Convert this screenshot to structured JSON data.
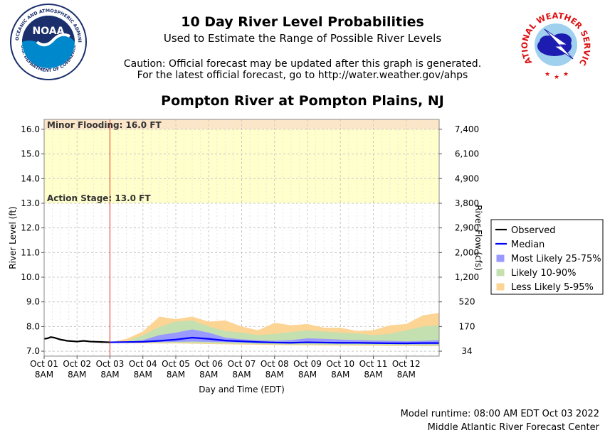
{
  "header": {
    "title": "10 Day River Level Probabilities",
    "subtitle": "Used to Estimate the Range of Possible River Levels",
    "caution_line1": "Caution: Official forecast may be updated after this graph is generated.",
    "caution_line2": "For the latest official forecast, go to http://water.weather.gov/ahps",
    "location": "Pompton River at Pompton Plains, NJ"
  },
  "logos": {
    "noaa": {
      "center_text": "NOAA",
      "ring_text": "NATIONAL OCEANIC AND ATMOSPHERIC ADMINISTRATION",
      "bottom_text": "U.S. DEPARTMENT OF COMMERCE"
    },
    "nws": {
      "ring_text": "NATIONAL WEATHER SERVICE"
    }
  },
  "footer": {
    "runtime": "Model runtime: 08:00 AM EDT Oct 03 2022",
    "center": "Middle Atlantic River Forecast Center"
  },
  "chart_data": {
    "type": "area",
    "xlabel": "Day and Time (EDT)",
    "ylabel": "River Level (ft)",
    "y2label": "River Flow (cfs)",
    "ylim": [
      6.8,
      16.4
    ],
    "yticks": [
      7.0,
      8.0,
      9.0,
      10.0,
      11.0,
      12.0,
      13.0,
      14.0,
      15.0,
      16.0
    ],
    "y2ticks": [
      {
        "stage": 7.0,
        "label": "34"
      },
      {
        "stage": 8.0,
        "label": "170"
      },
      {
        "stage": 9.0,
        "label": "520"
      },
      {
        "stage": 10.0,
        "label": "1,200"
      },
      {
        "stage": 11.0,
        "label": "2,000"
      },
      {
        "stage": 12.0,
        "label": "2,900"
      },
      {
        "stage": 13.0,
        "label": "3,800"
      },
      {
        "stage": 14.0,
        "label": "4,900"
      },
      {
        "stage": 15.0,
        "label": "6,100"
      },
      {
        "stage": 16.0,
        "label": "7,400"
      }
    ],
    "xlim": [
      0,
      12
    ],
    "xticks": [
      {
        "day": 0,
        "label1": "Oct 01",
        "label2": "8AM"
      },
      {
        "day": 1,
        "label1": "Oct 02",
        "label2": "8AM"
      },
      {
        "day": 2,
        "label1": "Oct 03",
        "label2": "8AM"
      },
      {
        "day": 3,
        "label1": "Oct 04",
        "label2": "8AM"
      },
      {
        "day": 4,
        "label1": "Oct 05",
        "label2": "8AM"
      },
      {
        "day": 5,
        "label1": "Oct 06",
        "label2": "8AM"
      },
      {
        "day": 6,
        "label1": "Oct 07",
        "label2": "8AM"
      },
      {
        "day": 7,
        "label1": "Oct 08",
        "label2": "8AM"
      },
      {
        "day": 8,
        "label1": "Oct 09",
        "label2": "8AM"
      },
      {
        "day": 9,
        "label1": "Oct 10",
        "label2": "8AM"
      },
      {
        "day": 10,
        "label1": "Oct 11",
        "label2": "8AM"
      },
      {
        "day": 11,
        "label1": "Oct 12",
        "label2": "8AM"
      }
    ],
    "forecast_start_day": 2,
    "grid": true,
    "legend_position": "right",
    "flood_zones": [
      {
        "name": "Action Stage",
        "label": "Action Stage: 13.0 FT",
        "from": 13.0,
        "to": 16.0,
        "color": "#ffffcc"
      },
      {
        "name": "Minor Flooding",
        "label": "Minor Flooding: 16.0 FT",
        "from": 16.0,
        "to": 16.4,
        "color": "#fce6c8"
      }
    ],
    "legend": [
      {
        "key": "observed",
        "label": "Observed",
        "color": "#000000",
        "kind": "line"
      },
      {
        "key": "median",
        "label": "Median",
        "color": "#0000ff",
        "kind": "line"
      },
      {
        "key": "band_25_75",
        "label": "Most Likely 25-75%",
        "color": "#9999ff",
        "kind": "band"
      },
      {
        "key": "band_10_90",
        "label": "Likely 10-90%",
        "color": "#c4e0b0",
        "kind": "band"
      },
      {
        "key": "band_5_95",
        "label": "Less Likely 5-95%",
        "color": "#fcd494",
        "kind": "band"
      }
    ],
    "observed": {
      "x": [
        0,
        0.1,
        0.2,
        0.3,
        0.5,
        0.7,
        0.9,
        1.0,
        1.2,
        1.4,
        1.6,
        1.8,
        2.0
      ],
      "y": [
        7.5,
        7.52,
        7.57,
        7.55,
        7.47,
        7.42,
        7.4,
        7.39,
        7.42,
        7.39,
        7.38,
        7.37,
        7.36
      ]
    },
    "forecast": {
      "x": [
        2.0,
        2.5,
        3.0,
        3.5,
        4.0,
        4.5,
        5.0,
        5.5,
        6.0,
        6.5,
        7.0,
        7.5,
        8.0,
        8.5,
        9.0,
        9.5,
        10.0,
        10.5,
        11.0,
        11.5,
        12.0
      ],
      "median": [
        7.36,
        7.37,
        7.38,
        7.42,
        7.47,
        7.55,
        7.5,
        7.43,
        7.4,
        7.37,
        7.35,
        7.34,
        7.36,
        7.35,
        7.34,
        7.34,
        7.33,
        7.32,
        7.32,
        7.33,
        7.33
      ],
      "p25": [
        7.36,
        7.36,
        7.37,
        7.37,
        7.38,
        7.39,
        7.38,
        7.37,
        7.35,
        7.34,
        7.33,
        7.32,
        7.32,
        7.31,
        7.3,
        7.3,
        7.3,
        7.29,
        7.28,
        7.28,
        7.28
      ],
      "p75": [
        7.36,
        7.37,
        7.45,
        7.65,
        7.75,
        7.88,
        7.75,
        7.55,
        7.48,
        7.44,
        7.42,
        7.45,
        7.52,
        7.5,
        7.47,
        7.45,
        7.43,
        7.42,
        7.4,
        7.42,
        7.45
      ],
      "p10": [
        7.36,
        7.35,
        7.35,
        7.34,
        7.34,
        7.33,
        7.32,
        7.31,
        7.3,
        7.29,
        7.28,
        7.27,
        7.27,
        7.26,
        7.26,
        7.25,
        7.25,
        7.24,
        7.24,
        7.23,
        7.23
      ],
      "p90": [
        7.36,
        7.4,
        7.65,
        7.98,
        8.2,
        8.25,
        8.0,
        7.82,
        7.75,
        7.65,
        7.7,
        7.78,
        7.85,
        7.8,
        7.75,
        7.72,
        7.65,
        7.7,
        7.85,
        8.0,
        8.05
      ],
      "p5": [
        7.36,
        7.33,
        7.32,
        7.31,
        7.31,
        7.3,
        7.29,
        7.28,
        7.27,
        7.26,
        7.25,
        7.24,
        7.24,
        7.23,
        7.23,
        7.22,
        7.22,
        7.21,
        7.21,
        7.2,
        7.2
      ],
      "p95": [
        7.36,
        7.5,
        7.8,
        8.4,
        8.3,
        8.4,
        8.2,
        8.25,
        8.0,
        7.85,
        8.15,
        8.05,
        8.1,
        7.95,
        7.95,
        7.82,
        7.85,
        8.05,
        8.1,
        8.45,
        8.55
      ]
    }
  }
}
